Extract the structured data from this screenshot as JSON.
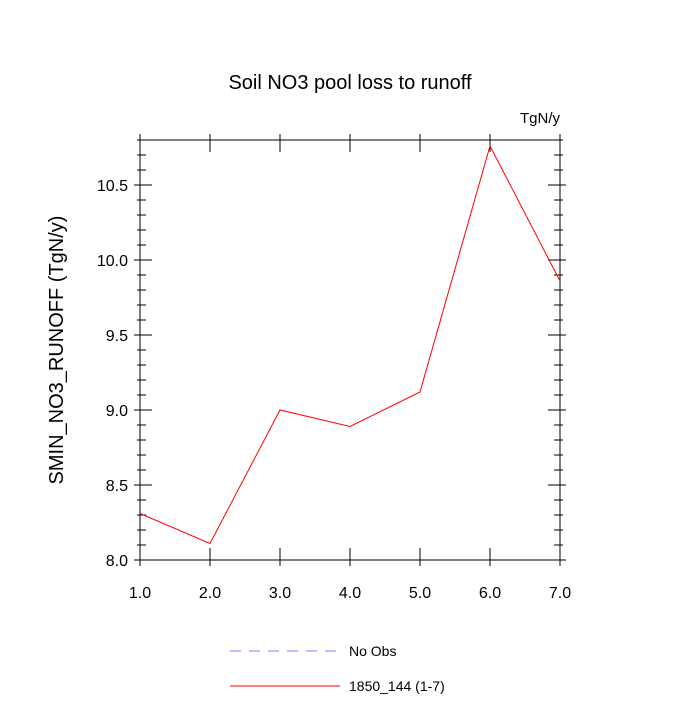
{
  "chart_data": {
    "type": "line",
    "title": "Soil NO3 pool loss to runoff",
    "units_label": "TgN/y",
    "ylabel": "SMIN_NO3_RUNOFF  (TgN/y)",
    "xlabel": "",
    "xlim": [
      1.0,
      7.0
    ],
    "ylim": [
      8.0,
      10.8
    ],
    "x_ticks": [
      1.0,
      2.0,
      3.0,
      4.0,
      5.0,
      6.0,
      7.0
    ],
    "x_tick_labels": [
      "1.0",
      "2.0",
      "3.0",
      "4.0",
      "5.0",
      "6.0",
      "7.0"
    ],
    "y_ticks": [
      8.0,
      8.5,
      9.0,
      9.5,
      10.0,
      10.5
    ],
    "y_tick_labels": [
      "8.0",
      "8.5",
      "9.0",
      "9.5",
      "10.0",
      "10.5"
    ],
    "grid": false,
    "legend_position": "bottom-center",
    "series": [
      {
        "name": "1850_144 (1-7)",
        "color": "#ff0000",
        "style": "solid",
        "x": [
          1.0,
          2.0,
          3.0,
          4.0,
          5.0,
          6.0,
          7.0
        ],
        "values": [
          8.31,
          8.11,
          9.0,
          8.89,
          9.12,
          10.76,
          9.86
        ]
      }
    ],
    "legend": [
      {
        "label": "No Obs",
        "color": "#7b7bff",
        "style": "dashed"
      },
      {
        "label": "1850_144 (1-7)",
        "color": "#ff0000",
        "style": "solid"
      }
    ]
  }
}
